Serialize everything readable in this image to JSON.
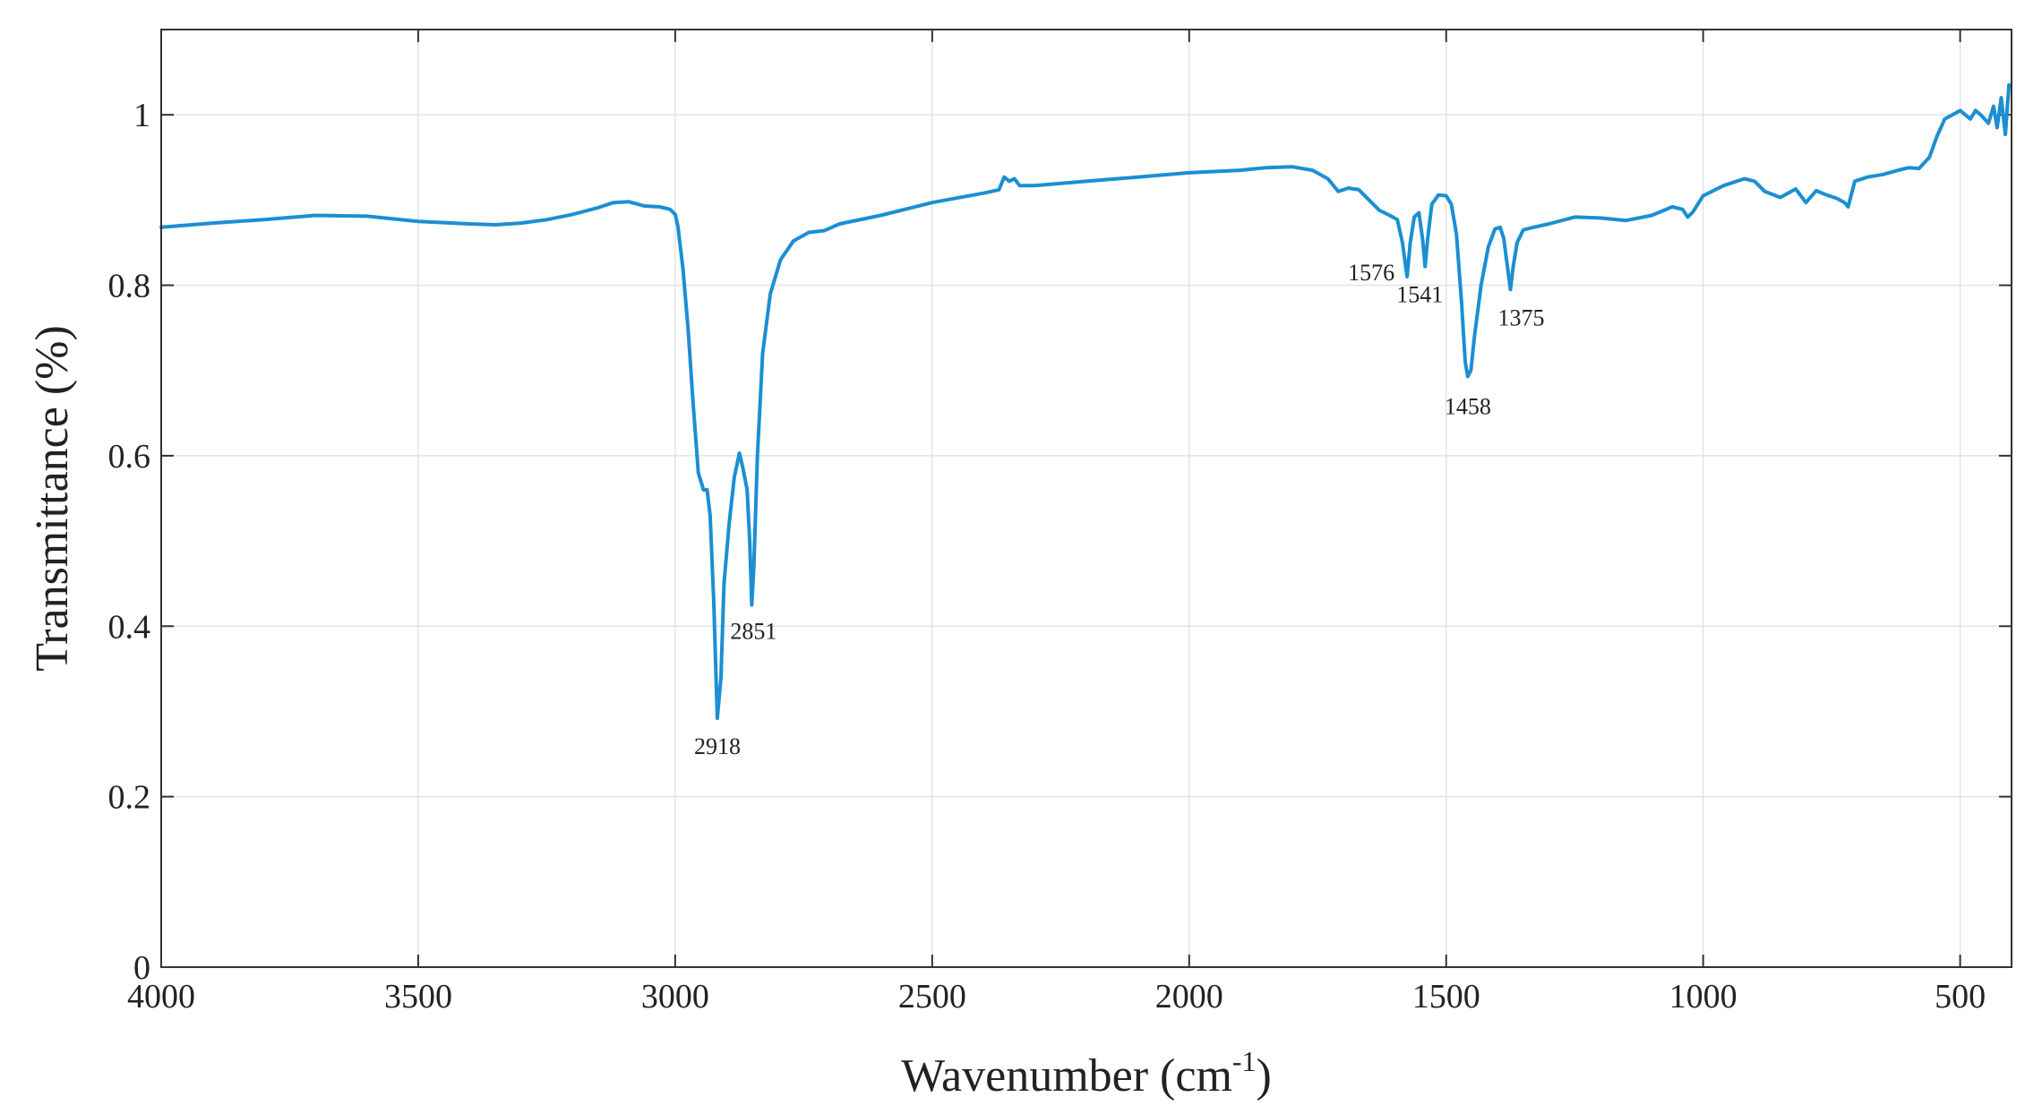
{
  "chart_data": {
    "type": "line",
    "title": "",
    "xlabel": "Wavenumber (cm",
    "xlabel_superscript": "-1",
    "xlabel_suffix": ")",
    "ylabel": "Transmittance (%)",
    "xlim": [
      4000,
      400
    ],
    "ylim": [
      0,
      1.1
    ],
    "x_reversed": true,
    "grid": true,
    "x_ticks": [
      4000,
      3500,
      3000,
      2500,
      2000,
      1500,
      1000,
      500
    ],
    "x_tick_labels": [
      "4000",
      "3500",
      "3000",
      "2500",
      "2000",
      "1500",
      "1000",
      "500"
    ],
    "y_ticks": [
      0,
      0.2,
      0.4,
      0.6,
      0.8,
      1
    ],
    "y_tick_labels": [
      "0",
      "0.2",
      "0.4",
      "0.6",
      "0.8",
      "1"
    ],
    "line_color": "#1b8fd2",
    "series": [
      {
        "points": [
          [
            4000,
            0.868
          ],
          [
            3900,
            0.873
          ],
          [
            3800,
            0.877
          ],
          [
            3700,
            0.882
          ],
          [
            3600,
            0.881
          ],
          [
            3500,
            0.875
          ],
          [
            3400,
            0.872
          ],
          [
            3350,
            0.871
          ],
          [
            3300,
            0.873
          ],
          [
            3250,
            0.877
          ],
          [
            3200,
            0.883
          ],
          [
            3150,
            0.891
          ],
          [
            3120,
            0.897
          ],
          [
            3090,
            0.898
          ],
          [
            3060,
            0.893
          ],
          [
            3030,
            0.892
          ],
          [
            3010,
            0.889
          ],
          [
            3000,
            0.883
          ],
          [
            2995,
            0.87
          ],
          [
            2985,
            0.82
          ],
          [
            2975,
            0.75
          ],
          [
            2965,
            0.66
          ],
          [
            2955,
            0.58
          ],
          [
            2945,
            0.56
          ],
          [
            2938,
            0.56
          ],
          [
            2932,
            0.53
          ],
          [
            2925,
            0.43
          ],
          [
            2918,
            0.292
          ],
          [
            2911,
            0.34
          ],
          [
            2905,
            0.45
          ],
          [
            2895,
            0.52
          ],
          [
            2885,
            0.575
          ],
          [
            2875,
            0.603
          ],
          [
            2868,
            0.585
          ],
          [
            2860,
            0.56
          ],
          [
            2855,
            0.5
          ],
          [
            2851,
            0.425
          ],
          [
            2847,
            0.47
          ],
          [
            2840,
            0.6
          ],
          [
            2830,
            0.72
          ],
          [
            2815,
            0.79
          ],
          [
            2795,
            0.83
          ],
          [
            2770,
            0.852
          ],
          [
            2740,
            0.862
          ],
          [
            2710,
            0.864
          ],
          [
            2680,
            0.872
          ],
          [
            2600,
            0.882
          ],
          [
            2500,
            0.897
          ],
          [
            2400,
            0.908
          ],
          [
            2370,
            0.912
          ],
          [
            2360,
            0.927
          ],
          [
            2350,
            0.922
          ],
          [
            2340,
            0.925
          ],
          [
            2330,
            0.917
          ],
          [
            2300,
            0.917
          ],
          [
            2200,
            0.922
          ],
          [
            2100,
            0.927
          ],
          [
            2000,
            0.932
          ],
          [
            1900,
            0.935
          ],
          [
            1850,
            0.938
          ],
          [
            1800,
            0.939
          ],
          [
            1760,
            0.935
          ],
          [
            1730,
            0.925
          ],
          [
            1710,
            0.91
          ],
          [
            1690,
            0.914
          ],
          [
            1670,
            0.912
          ],
          [
            1650,
            0.9
          ],
          [
            1630,
            0.888
          ],
          [
            1610,
            0.882
          ],
          [
            1595,
            0.877
          ],
          [
            1585,
            0.85
          ],
          [
            1576,
            0.81
          ],
          [
            1570,
            0.85
          ],
          [
            1562,
            0.88
          ],
          [
            1553,
            0.885
          ],
          [
            1546,
            0.855
          ],
          [
            1541,
            0.822
          ],
          [
            1536,
            0.855
          ],
          [
            1528,
            0.895
          ],
          [
            1515,
            0.906
          ],
          [
            1500,
            0.905
          ],
          [
            1490,
            0.895
          ],
          [
            1480,
            0.86
          ],
          [
            1470,
            0.78
          ],
          [
            1463,
            0.71
          ],
          [
            1458,
            0.693
          ],
          [
            1452,
            0.7
          ],
          [
            1445,
            0.74
          ],
          [
            1432,
            0.8
          ],
          [
            1418,
            0.845
          ],
          [
            1405,
            0.866
          ],
          [
            1395,
            0.868
          ],
          [
            1388,
            0.855
          ],
          [
            1380,
            0.818
          ],
          [
            1375,
            0.795
          ],
          [
            1370,
            0.82
          ],
          [
            1362,
            0.85
          ],
          [
            1350,
            0.865
          ],
          [
            1330,
            0.868
          ],
          [
            1300,
            0.872
          ],
          [
            1250,
            0.88
          ],
          [
            1200,
            0.879
          ],
          [
            1150,
            0.876
          ],
          [
            1100,
            0.882
          ],
          [
            1060,
            0.892
          ],
          [
            1040,
            0.889
          ],
          [
            1030,
            0.88
          ],
          [
            1020,
            0.886
          ],
          [
            1000,
            0.905
          ],
          [
            960,
            0.917
          ],
          [
            920,
            0.925
          ],
          [
            900,
            0.922
          ],
          [
            880,
            0.91
          ],
          [
            850,
            0.903
          ],
          [
            820,
            0.913
          ],
          [
            800,
            0.897
          ],
          [
            780,
            0.911
          ],
          [
            760,
            0.906
          ],
          [
            740,
            0.902
          ],
          [
            725,
            0.897
          ],
          [
            718,
            0.892
          ],
          [
            705,
            0.922
          ],
          [
            680,
            0.927
          ],
          [
            650,
            0.93
          ],
          [
            620,
            0.935
          ],
          [
            600,
            0.938
          ],
          [
            580,
            0.937
          ],
          [
            560,
            0.95
          ],
          [
            545,
            0.975
          ],
          [
            530,
            0.995
          ],
          [
            515,
            1.0
          ],
          [
            500,
            1.005
          ],
          [
            490,
            1.0
          ],
          [
            480,
            0.995
          ],
          [
            470,
            1.005
          ],
          [
            460,
            1.0
          ],
          [
            445,
            0.99
          ],
          [
            435,
            1.01
          ],
          [
            428,
            0.985
          ],
          [
            420,
            1.02
          ],
          [
            412,
            0.977
          ],
          [
            405,
            1.035
          ]
        ]
      }
    ],
    "annotations": [
      {
        "text": "2918",
        "x": 2918,
        "y": 0.292,
        "dx": 0,
        "dy": 40
      },
      {
        "text": "2851",
        "x": 2851,
        "y": 0.425,
        "dx": 2,
        "dy": 38
      },
      {
        "text": "1576",
        "x": 1576,
        "y": 0.81,
        "dx": -40,
        "dy": 4
      },
      {
        "text": "1541",
        "x": 1541,
        "y": 0.822,
        "dx": -6,
        "dy": 40
      },
      {
        "text": "1375",
        "x": 1375,
        "y": 0.795,
        "dx": 12,
        "dy": 40
      },
      {
        "text": "1458",
        "x": 1458,
        "y": 0.693,
        "dx": 0,
        "dy": 42
      }
    ]
  }
}
